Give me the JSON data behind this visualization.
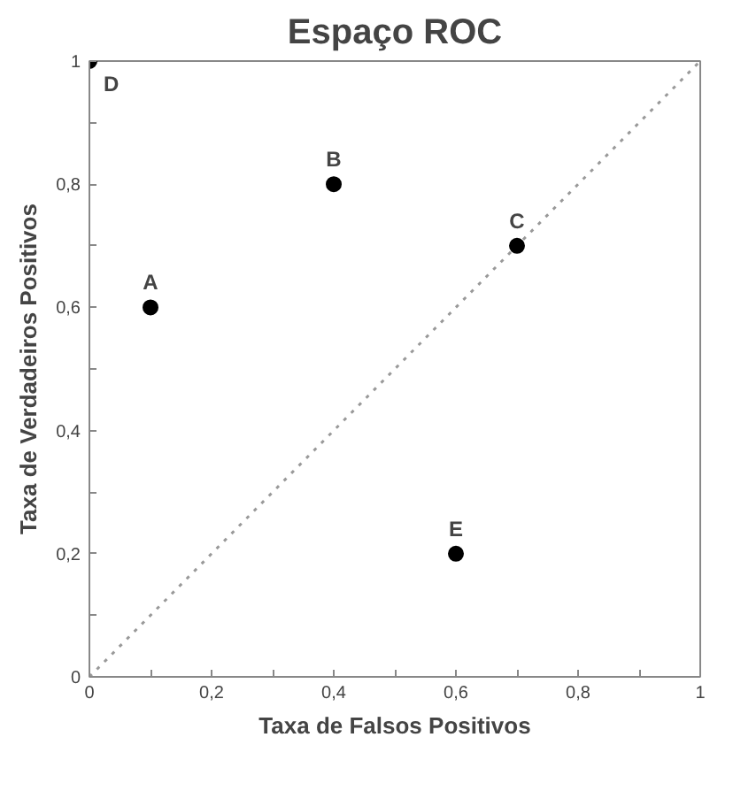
{
  "chart_data": {
    "type": "scatter",
    "title": "Espaço ROC",
    "xlabel": "Taxa de Falsos Positivos",
    "ylabel": "Taxa de Verdadeiros Positivos",
    "xlim": [
      0,
      1
    ],
    "ylim": [
      0,
      1
    ],
    "xticks": [
      0,
      {
        "value": 0.1,
        "label": null
      },
      {
        "value": 0.2,
        "label": "0,2"
      },
      {
        "value": 0.3,
        "label": null
      },
      {
        "value": 0.4,
        "label": "0,4"
      },
      {
        "value": 0.5,
        "label": null
      },
      {
        "value": 0.6,
        "label": "0,6"
      },
      {
        "value": 0.7,
        "label": null
      },
      {
        "value": 0.8,
        "label": "0,8"
      },
      {
        "value": 0.9,
        "label": null
      },
      1
    ],
    "yticks": [
      0,
      {
        "value": 0.1,
        "label": null
      },
      {
        "value": 0.2,
        "label": "0,2"
      },
      {
        "value": 0.3,
        "label": null
      },
      {
        "value": 0.4,
        "label": "0,4"
      },
      {
        "value": 0.5,
        "label": null
      },
      {
        "value": 0.6,
        "label": "0,6"
      },
      {
        "value": 0.7,
        "label": null
      },
      {
        "value": 0.8,
        "label": "0,8"
      },
      {
        "value": 0.9,
        "label": null
      },
      1
    ],
    "grid": false,
    "marker": "circle",
    "series": [
      {
        "type": "line",
        "color": "#999999",
        "line_style": "dotted",
        "marker": "none",
        "x": [
          0,
          1
        ],
        "values": [
          0,
          1
        ]
      },
      {
        "color": "#000000",
        "x": [
          0.1,
          0.4,
          0.7,
          0,
          0.6
        ],
        "values": [
          0.6,
          0.8,
          0.7,
          1,
          0.2
        ]
      }
    ],
    "annotations": [
      {
        "text": "A",
        "x": 0.1,
        "y": 0.6
      },
      {
        "text": "B",
        "x": 0.4,
        "y": 0.8
      },
      {
        "text": "C",
        "x": 0.7,
        "y": 0.7
      },
      {
        "text": "D",
        "x": 0,
        "y": 1
      },
      {
        "text": "E",
        "x": 0.6,
        "y": 0.2
      }
    ]
  }
}
